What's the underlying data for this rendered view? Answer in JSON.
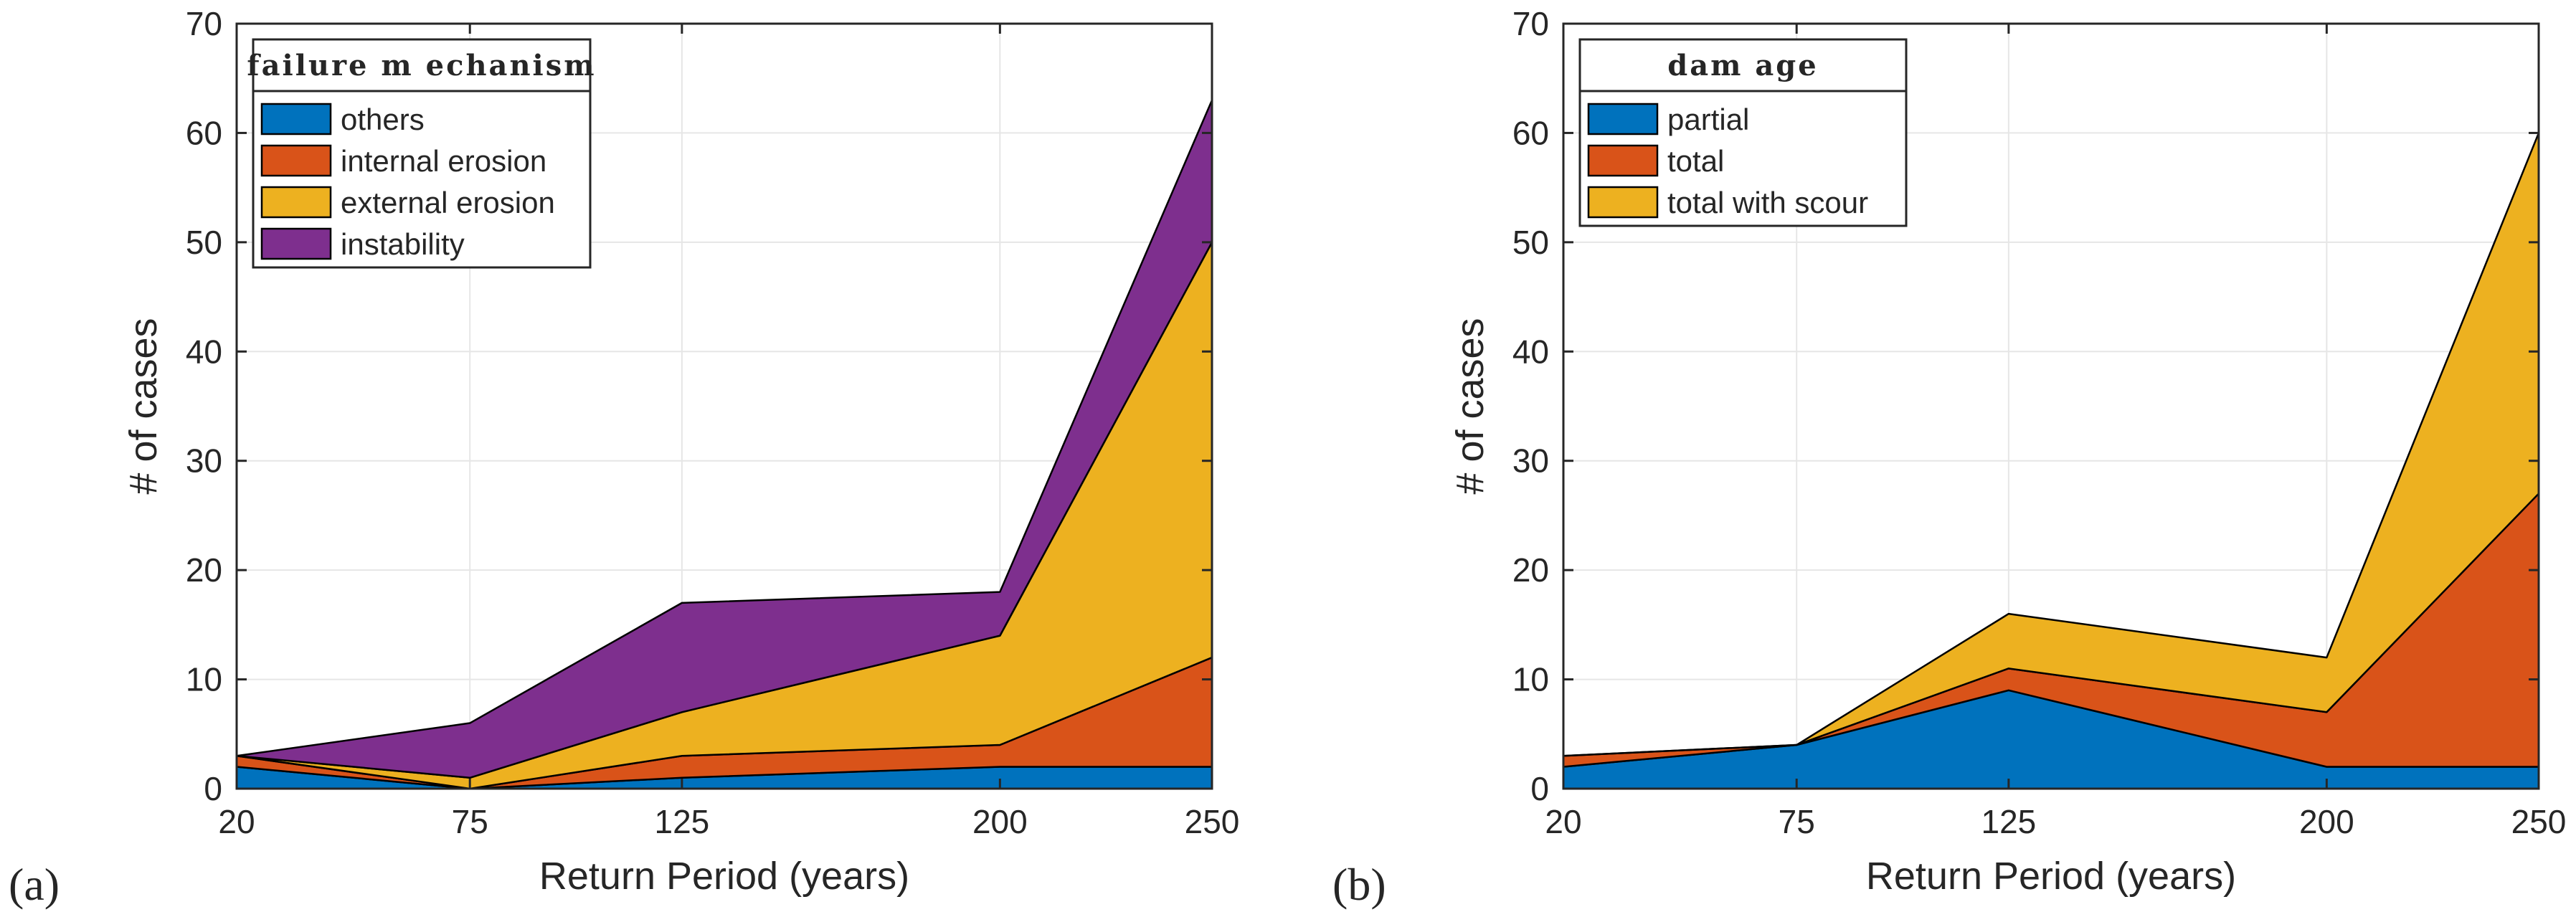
{
  "chart_data": [
    {
      "panel_label": "(a)",
      "type": "area",
      "stacked": true,
      "x": [
        20,
        75,
        125,
        200,
        250
      ],
      "xlabel": "Return Period (years)",
      "ylabel": "# of cases",
      "ylim": [
        0,
        70
      ],
      "yticks": [
        0,
        10,
        20,
        30,
        40,
        50,
        60,
        70
      ],
      "grid": true,
      "legend": {
        "title": "failure m echanism",
        "position": "top-left"
      },
      "series": [
        {
          "name": "others",
          "color": "#0072BD",
          "values": [
            2,
            0,
            1,
            2,
            2
          ]
        },
        {
          "name": "internal erosion",
          "color": "#D95319",
          "values": [
            1,
            0,
            2,
            2,
            10
          ]
        },
        {
          "name": "external erosion",
          "color": "#EDB120",
          "values": [
            0,
            1,
            4,
            10,
            38
          ]
        },
        {
          "name": "instability",
          "color": "#7E2F8E",
          "values": [
            0,
            5,
            10,
            4,
            13
          ]
        }
      ]
    },
    {
      "panel_label": "(b)",
      "type": "area",
      "stacked": true,
      "x": [
        20,
        75,
        125,
        200,
        250
      ],
      "xlabel": "Return Period (years)",
      "ylabel": "# of cases",
      "ylim": [
        0,
        70
      ],
      "yticks": [
        0,
        10,
        20,
        30,
        40,
        50,
        60,
        70
      ],
      "grid": true,
      "legend": {
        "title": "dam age",
        "position": "top-left"
      },
      "series": [
        {
          "name": "partial",
          "color": "#0072BD",
          "values": [
            2,
            4,
            9,
            2,
            2
          ]
        },
        {
          "name": "total",
          "color": "#D95319",
          "values": [
            1,
            0,
            2,
            5,
            25
          ]
        },
        {
          "name": "total with scour",
          "color": "#EDB120",
          "values": [
            0,
            0,
            5,
            5,
            33
          ]
        }
      ]
    }
  ]
}
